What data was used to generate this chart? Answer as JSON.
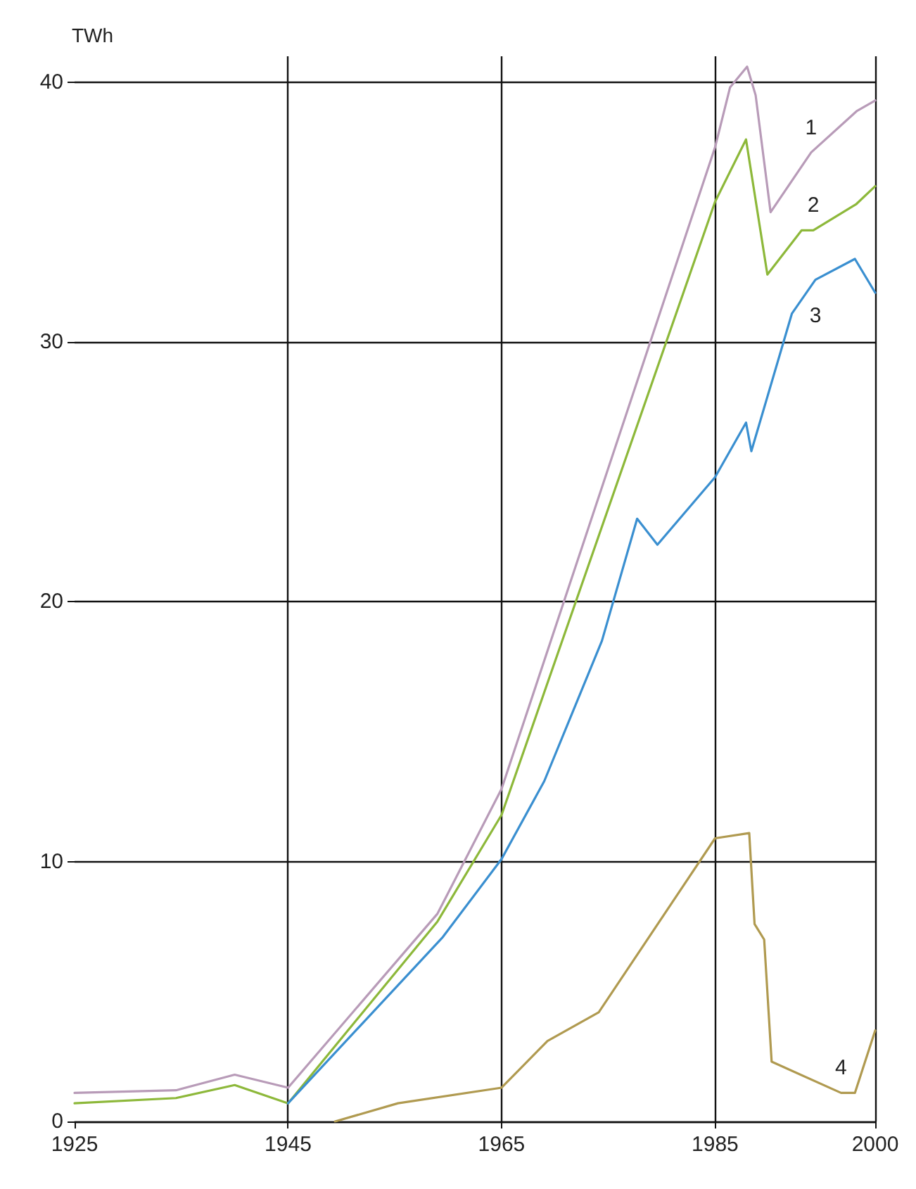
{
  "chart_data": {
    "type": "line",
    "ylabel": "TWh",
    "xlim": [
      1925,
      2000
    ],
    "xticks": [
      1925,
      1945,
      1965,
      1985,
      2000
    ],
    "ylim": [
      0,
      41
    ],
    "yticks": [
      0,
      10,
      20,
      30,
      40
    ],
    "grid": true,
    "legend": false,
    "marker": "none",
    "line_style": "solid",
    "series": [
      {
        "name": "1",
        "color": "#b89bb8",
        "x": [
          1925,
          1934.5,
          1940,
          1945,
          1959,
          1965,
          1985,
          1986.4,
          1988,
          1988.8,
          1990.2,
          1994,
          1998.3,
          2000
        ],
        "values": [
          1.1,
          1.2,
          1.8,
          1.3,
          8.0,
          12.8,
          37.5,
          39.8,
          40.6,
          39.5,
          35.0,
          37.3,
          38.9,
          39.3
        ]
      },
      {
        "name": "2",
        "color": "#8db83a",
        "x": [
          1925,
          1934.5,
          1940,
          1945,
          1959,
          1965,
          1985,
          1987.9,
          1989.9,
          1993.1,
          1994.2,
          1998.2,
          2000
        ],
        "values": [
          0.7,
          0.9,
          1.4,
          0.7,
          7.7,
          11.8,
          35.4,
          37.8,
          32.6,
          34.3,
          34.3,
          35.3,
          36.0
        ]
      },
      {
        "name": "3",
        "color": "#3a8fd0",
        "x": [
          1945,
          1959.5,
          1965,
          1969,
          1974.4,
          1977.7,
          1979.6,
          1985,
          1987.9,
          1988.4,
          1992.2,
          1994.4,
          1998.1,
          2000
        ],
        "values": [
          0.7,
          7.1,
          10.1,
          13.1,
          18.5,
          23.2,
          22.2,
          24.8,
          26.9,
          25.8,
          31.1,
          32.4,
          33.2,
          31.9
        ]
      },
      {
        "name": "4",
        "color": "#b09a50",
        "x": [
          1949.4,
          1955.3,
          1965,
          1969.3,
          1974.1,
          1985,
          1988.2,
          1988.7,
          1989.6,
          1990.3,
          1996.8,
          1998.1,
          2000
        ],
        "values": [
          0,
          0.7,
          1.3,
          3.1,
          4.2,
          10.9,
          11.1,
          7.6,
          7.0,
          2.3,
          1.1,
          1.1,
          3.5
        ]
      }
    ]
  }
}
